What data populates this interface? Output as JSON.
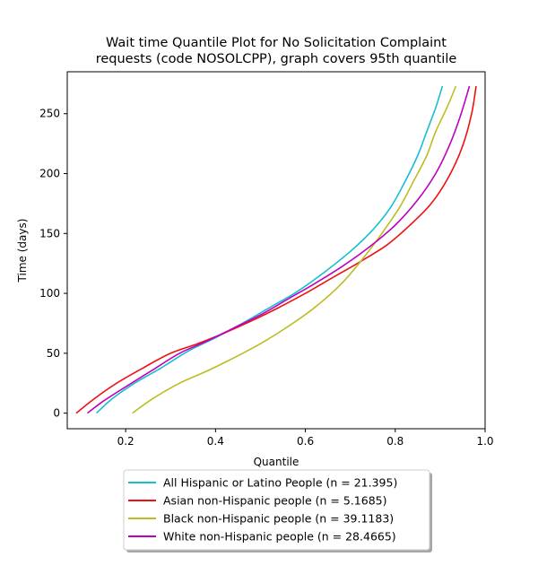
{
  "chart_data": {
    "type": "line",
    "title_lines": [
      "Wait time Quantile Plot for No Solicitation Complaint",
      "requests (code NOSOLCPP), graph covers 95th quantile"
    ],
    "xlabel": "Quantile",
    "ylabel": "Time (days)",
    "xlim": [
      0.07,
      1.0
    ],
    "ylim": [
      -13,
      285
    ],
    "xticks": [
      0.2,
      0.4,
      0.6,
      0.8,
      1.0
    ],
    "xtick_labels": [
      "0.2",
      "0.4",
      "0.6",
      "0.8",
      "1.0"
    ],
    "yticks": [
      0,
      50,
      100,
      150,
      200,
      250
    ],
    "ytick_labels": [
      "0",
      "50",
      "100",
      "150",
      "200",
      "250"
    ],
    "grid": false,
    "legend_position": "below-center",
    "series": [
      {
        "name": "All Hispanic or Latino People (n = 21.395)",
        "color": "#17becf",
        "points": [
          [
            0.135,
            0
          ],
          [
            0.17,
            12
          ],
          [
            0.22,
            25
          ],
          [
            0.28,
            38
          ],
          [
            0.34,
            52
          ],
          [
            0.4,
            63
          ],
          [
            0.46,
            75
          ],
          [
            0.52,
            88
          ],
          [
            0.58,
            101
          ],
          [
            0.64,
            117
          ],
          [
            0.7,
            135
          ],
          [
            0.75,
            153
          ],
          [
            0.79,
            172
          ],
          [
            0.82,
            192
          ],
          [
            0.85,
            215
          ],
          [
            0.87,
            235
          ],
          [
            0.89,
            255
          ],
          [
            0.905,
            273
          ]
        ]
      },
      {
        "name": "Asian non-Hispanic people (n = 5.1685)",
        "color": "#ee1111",
        "points": [
          [
            0.09,
            0
          ],
          [
            0.13,
            12
          ],
          [
            0.18,
            25
          ],
          [
            0.24,
            38
          ],
          [
            0.3,
            50
          ],
          [
            0.36,
            58
          ],
          [
            0.42,
            67
          ],
          [
            0.48,
            77
          ],
          [
            0.54,
            88
          ],
          [
            0.6,
            100
          ],
          [
            0.66,
            113
          ],
          [
            0.72,
            126
          ],
          [
            0.78,
            140
          ],
          [
            0.83,
            156
          ],
          [
            0.88,
            175
          ],
          [
            0.92,
            198
          ],
          [
            0.95,
            223
          ],
          [
            0.97,
            250
          ],
          [
            0.98,
            273
          ]
        ]
      },
      {
        "name": "Black non-Hispanic people (n = 39.1183)",
        "color": "#bcbd22",
        "points": [
          [
            0.215,
            0
          ],
          [
            0.26,
            12
          ],
          [
            0.32,
            25
          ],
          [
            0.38,
            35
          ],
          [
            0.44,
            46
          ],
          [
            0.5,
            58
          ],
          [
            0.56,
            72
          ],
          [
            0.62,
            88
          ],
          [
            0.68,
            108
          ],
          [
            0.73,
            130
          ],
          [
            0.77,
            150
          ],
          [
            0.81,
            172
          ],
          [
            0.84,
            193
          ],
          [
            0.87,
            215
          ],
          [
            0.89,
            235
          ],
          [
            0.915,
            255
          ],
          [
            0.935,
            273
          ]
        ]
      },
      {
        "name": "White non-Hispanic people (n = 28.4665)",
        "color": "#bf00bf",
        "points": [
          [
            0.115,
            0
          ],
          [
            0.15,
            10
          ],
          [
            0.2,
            22
          ],
          [
            0.26,
            36
          ],
          [
            0.32,
            50
          ],
          [
            0.38,
            60
          ],
          [
            0.44,
            71
          ],
          [
            0.5,
            82
          ],
          [
            0.56,
            95
          ],
          [
            0.62,
            108
          ],
          [
            0.68,
            122
          ],
          [
            0.74,
            138
          ],
          [
            0.8,
            157
          ],
          [
            0.85,
            178
          ],
          [
            0.89,
            200
          ],
          [
            0.92,
            223
          ],
          [
            0.945,
            248
          ],
          [
            0.965,
            273
          ]
        ]
      }
    ]
  }
}
